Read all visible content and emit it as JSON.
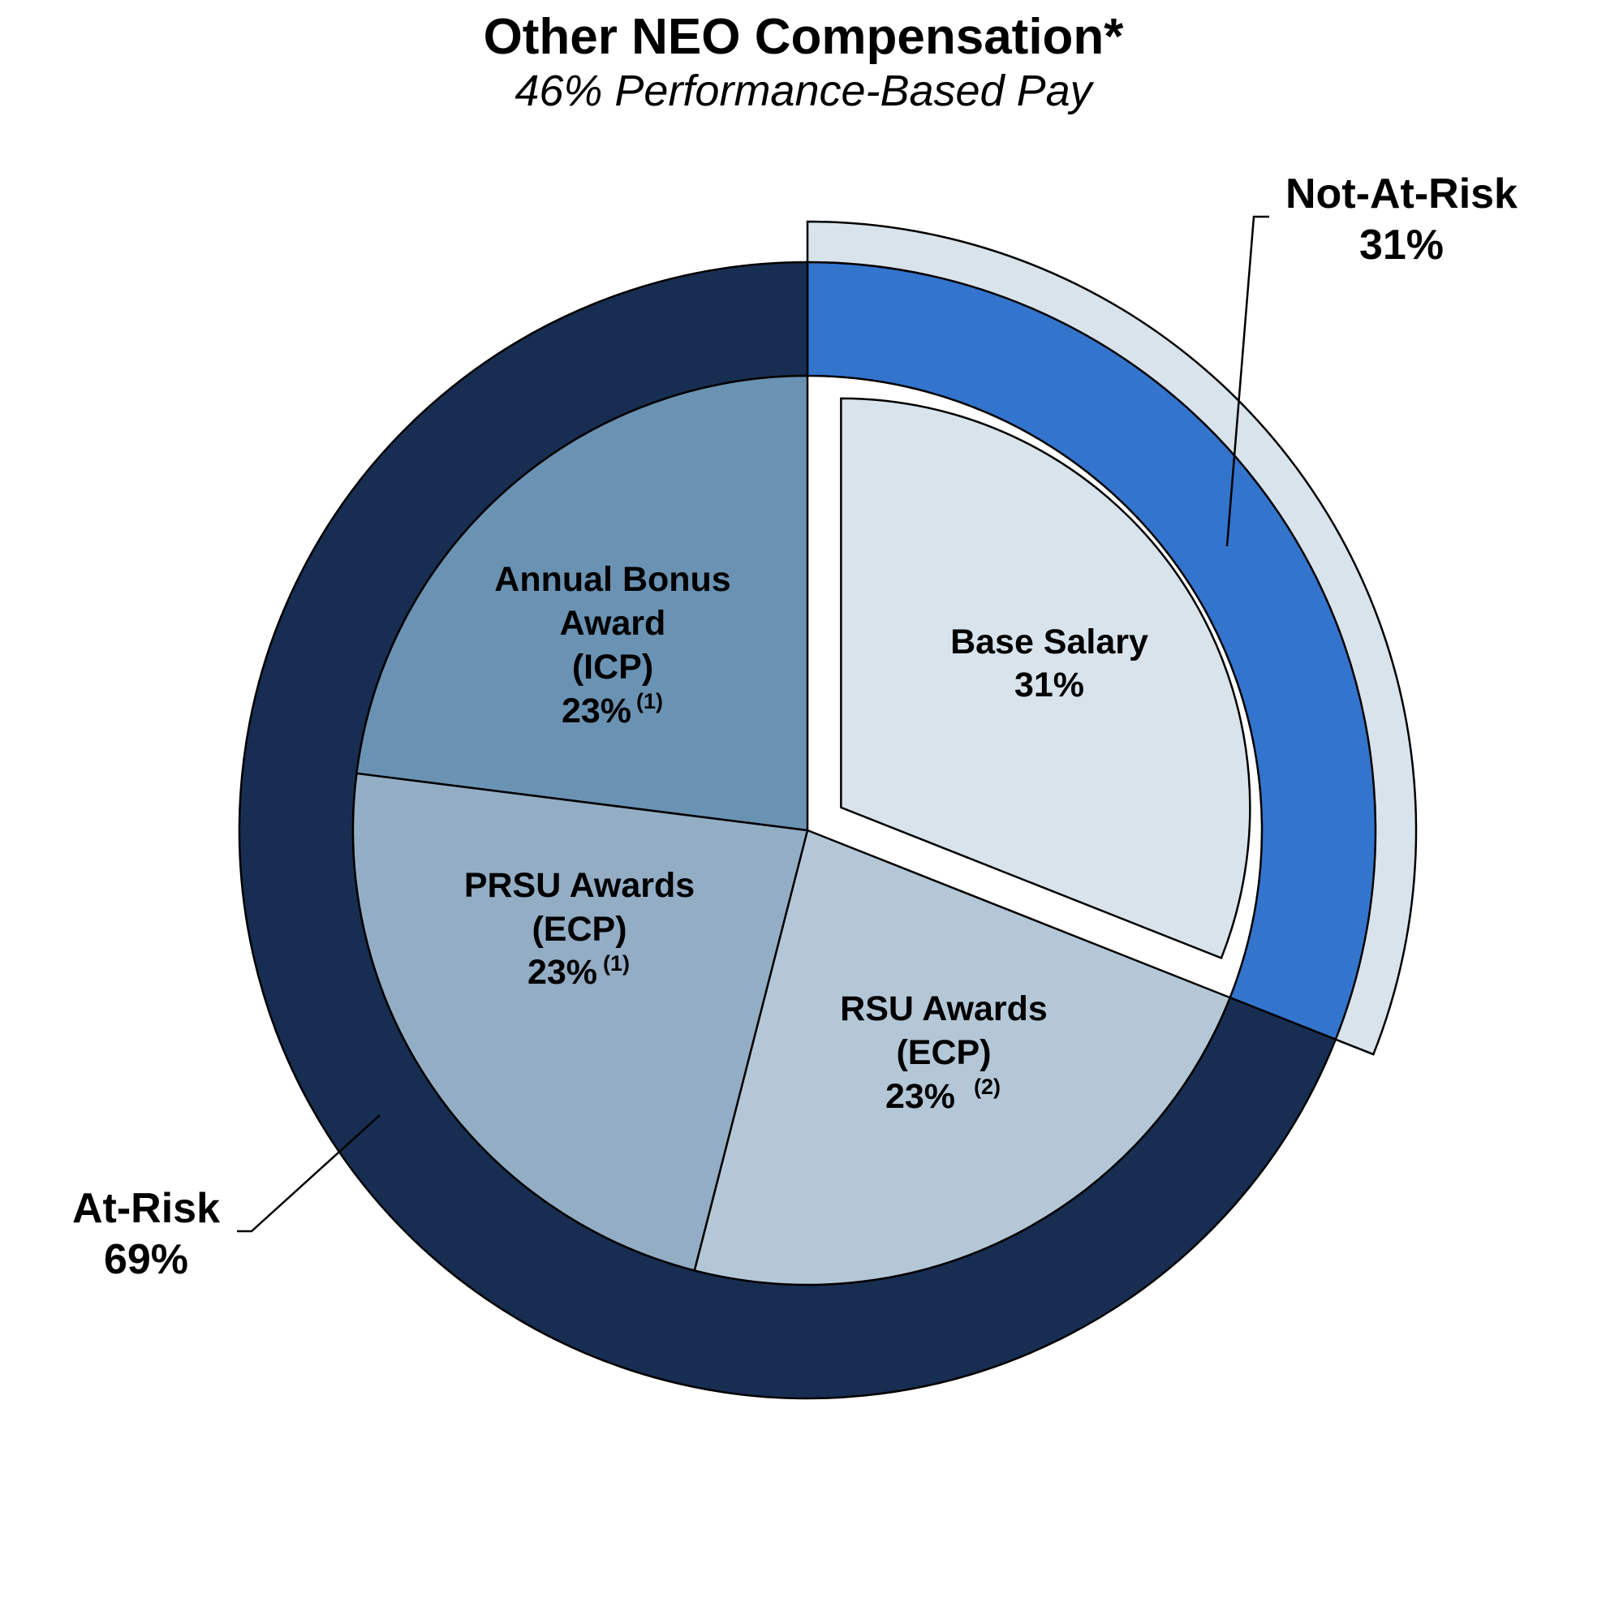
{
  "chart_data": {
    "type": "pie",
    "title": "Other NEO Compensation*",
    "subtitle": "46% Performance-Based Pay",
    "slices": [
      {
        "label": "Base Salary",
        "value": 31,
        "value_label": "31%",
        "footnote": "",
        "color": "#d8e3eb",
        "exploded": true
      },
      {
        "label": "RSU Awards (ECP)",
        "value": 23,
        "value_label": "23%",
        "footnote": "(2)",
        "color": "#b4c7d7",
        "exploded": false
      },
      {
        "label": "PRSU Awards (ECP)",
        "value": 23,
        "value_label": "23%",
        "footnote": "(1)",
        "color": "#93adc5",
        "exploded": false
      },
      {
        "label": "Annual Bonus Award (ICP)",
        "value": 23,
        "value_label": "23%",
        "footnote": "(1)",
        "color": "#6a92b3",
        "exploded": false
      }
    ],
    "outer_ring": [
      {
        "label": "Not-At-Risk",
        "value": 31,
        "value_label": "31%",
        "color": "#3374cd",
        "band_color": "#d8e3eb"
      },
      {
        "label": "At-Risk",
        "value": 69,
        "value_label": "69%",
        "color": "#172e52"
      }
    ]
  },
  "labels": {
    "base_salary": [
      "Base Salary"
    ],
    "rsu": [
      "RSU Awards",
      "(ECP)"
    ],
    "prsu": [
      "PRSU Awards",
      "(ECP)"
    ],
    "bonus": [
      "Annual Bonus",
      "Award",
      "(ICP)"
    ]
  }
}
